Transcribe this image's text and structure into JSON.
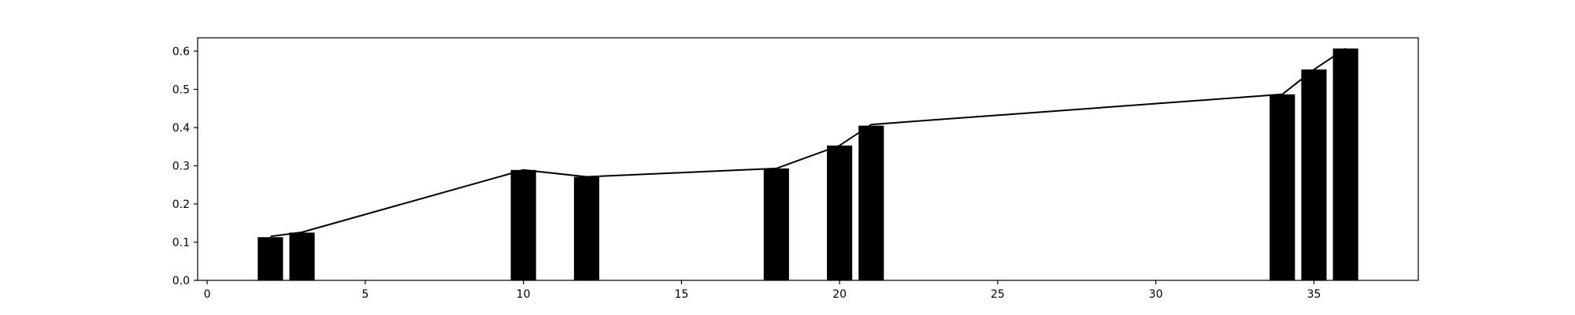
{
  "chart_data": {
    "type": "bar",
    "title": "",
    "xlabel": "",
    "ylabel": "",
    "xlim": [
      -0.3,
      38.3
    ],
    "ylim": [
      0,
      0.635
    ],
    "grid": false,
    "bar_width": 0.8,
    "bar_color": "#000000",
    "line_color": "#000000",
    "x_ticks": [
      0,
      5,
      10,
      15,
      20,
      25,
      30,
      35
    ],
    "y_ticks": [
      0.0,
      0.1,
      0.2,
      0.3,
      0.4,
      0.5,
      0.6
    ],
    "x_tick_labels": [
      "0",
      "5",
      "10",
      "15",
      "20",
      "25",
      "30",
      "35"
    ],
    "y_tick_labels": [
      "0.0",
      "0.1",
      "0.2",
      "0.3",
      "0.4",
      "0.5",
      "0.6"
    ],
    "bars": {
      "x": [
        2,
        3,
        10,
        12,
        18,
        20,
        21,
        34,
        35,
        36
      ],
      "values": [
        0.113,
        0.125,
        0.289,
        0.271,
        0.293,
        0.353,
        0.405,
        0.487,
        0.552,
        0.607
      ]
    },
    "line": {
      "x": [
        2,
        3,
        10,
        12,
        18,
        20,
        21,
        34,
        35,
        36
      ],
      "values": [
        0.115,
        0.126,
        0.289,
        0.271,
        0.293,
        0.353,
        0.408,
        0.487,
        0.552,
        0.607
      ]
    }
  }
}
